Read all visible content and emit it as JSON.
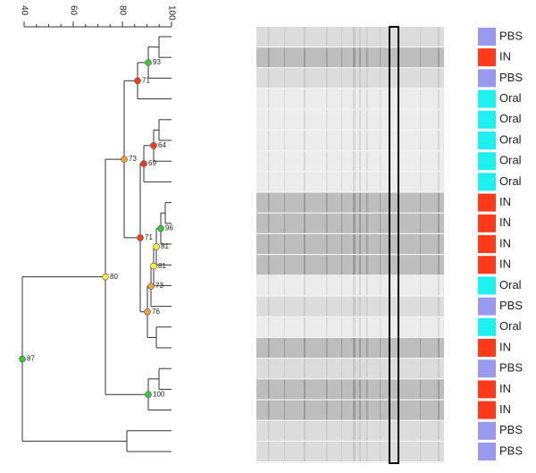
{
  "scale": {
    "ticks": [
      40,
      60,
      80,
      100
    ]
  },
  "nodes": [
    "93",
    "71",
    "64",
    "69",
    "73",
    "96",
    "71",
    "81",
    "81",
    "73",
    "76",
    "80",
    "100",
    "87"
  ],
  "lanes": [
    "PBS",
    "IN",
    "PBS",
    "Oral",
    "Oral",
    "Oral",
    "Oral",
    "Oral",
    "IN",
    "IN",
    "IN",
    "IN",
    "Oral",
    "PBS",
    "Oral",
    "IN",
    "PBS",
    "IN",
    "IN",
    "PBS",
    "PBS"
  ]
}
